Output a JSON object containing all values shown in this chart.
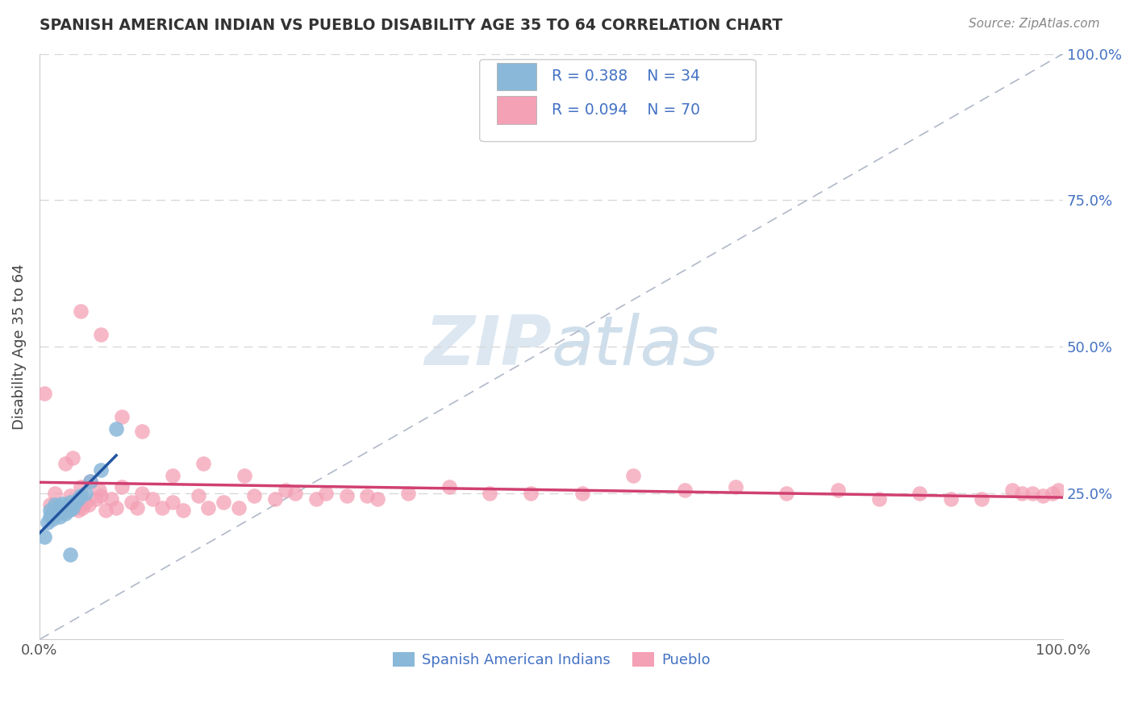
{
  "title": "SPANISH AMERICAN INDIAN VS PUEBLO DISABILITY AGE 35 TO 64 CORRELATION CHART",
  "source": "Source: ZipAtlas.com",
  "ylabel": "Disability Age 35 to 64",
  "color_blue": "#89b8d9",
  "color_pink": "#f4a0b5",
  "trendline_blue": "#2255a0",
  "trendline_pink": "#d04070",
  "background": "#ffffff",
  "blue_scatter_x": [
    0.005,
    0.008,
    0.01,
    0.01,
    0.012,
    0.013,
    0.013,
    0.015,
    0.015,
    0.015,
    0.018,
    0.018,
    0.018,
    0.02,
    0.02,
    0.02,
    0.022,
    0.022,
    0.022,
    0.025,
    0.025,
    0.028,
    0.028,
    0.03,
    0.03,
    0.032,
    0.035,
    0.038,
    0.04,
    0.045,
    0.05,
    0.06,
    0.075,
    0.03
  ],
  "blue_scatter_y": [
    0.175,
    0.2,
    0.21,
    0.22,
    0.215,
    0.205,
    0.215,
    0.218,
    0.222,
    0.23,
    0.215,
    0.22,
    0.225,
    0.21,
    0.218,
    0.228,
    0.22,
    0.225,
    0.232,
    0.215,
    0.225,
    0.22,
    0.228,
    0.222,
    0.235,
    0.225,
    0.235,
    0.24,
    0.245,
    0.25,
    0.27,
    0.29,
    0.36,
    0.145
  ],
  "pink_scatter_x": [
    0.005,
    0.01,
    0.015,
    0.018,
    0.022,
    0.025,
    0.025,
    0.03,
    0.032,
    0.035,
    0.038,
    0.04,
    0.042,
    0.045,
    0.048,
    0.05,
    0.055,
    0.058,
    0.06,
    0.065,
    0.07,
    0.075,
    0.08,
    0.09,
    0.095,
    0.1,
    0.11,
    0.12,
    0.13,
    0.14,
    0.155,
    0.165,
    0.18,
    0.195,
    0.21,
    0.23,
    0.25,
    0.27,
    0.3,
    0.33,
    0.36,
    0.4,
    0.44,
    0.48,
    0.53,
    0.58,
    0.63,
    0.68,
    0.73,
    0.78,
    0.82,
    0.86,
    0.89,
    0.92,
    0.95,
    0.96,
    0.97,
    0.98,
    0.99,
    0.995,
    0.04,
    0.06,
    0.08,
    0.1,
    0.13,
    0.16,
    0.2,
    0.24,
    0.28,
    0.32
  ],
  "pink_scatter_y": [
    0.42,
    0.23,
    0.25,
    0.22,
    0.225,
    0.3,
    0.22,
    0.245,
    0.31,
    0.225,
    0.22,
    0.26,
    0.225,
    0.235,
    0.23,
    0.27,
    0.24,
    0.255,
    0.245,
    0.22,
    0.24,
    0.225,
    0.26,
    0.235,
    0.225,
    0.25,
    0.24,
    0.225,
    0.235,
    0.22,
    0.245,
    0.225,
    0.235,
    0.225,
    0.245,
    0.24,
    0.25,
    0.24,
    0.245,
    0.24,
    0.25,
    0.26,
    0.25,
    0.25,
    0.25,
    0.28,
    0.255,
    0.26,
    0.25,
    0.255,
    0.24,
    0.25,
    0.24,
    0.24,
    0.255,
    0.25,
    0.25,
    0.245,
    0.25,
    0.255,
    0.56,
    0.52,
    0.38,
    0.355,
    0.28,
    0.3,
    0.28,
    0.255,
    0.25,
    0.245
  ],
  "grid_color": "#d8d8d8",
  "diagonal_color": "#b0b8c8",
  "legend_color": "#4472c4"
}
